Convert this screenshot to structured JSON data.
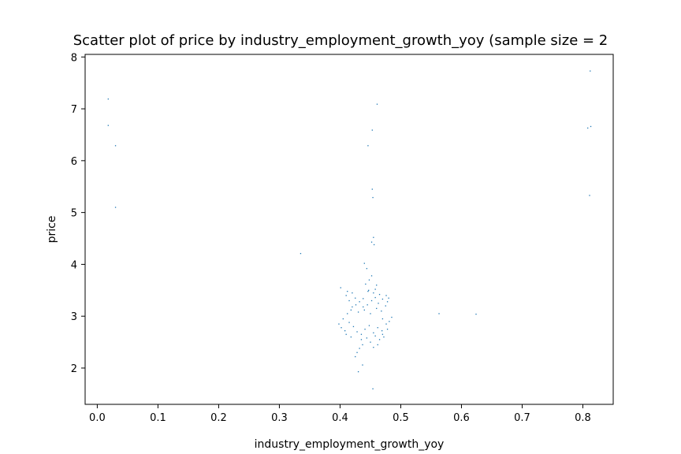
{
  "chart_data": {
    "type": "scatter",
    "title": "Scatter plot of price by industry_employment_growth_yoy (sample size = 2",
    "xlabel": "industry_employment_growth_yoy",
    "ylabel": "price",
    "xlim": [
      -0.02,
      0.85
    ],
    "ylim": [
      1.3,
      8.05
    ],
    "xticks": [
      0.0,
      0.1,
      0.2,
      0.3,
      0.4,
      0.5,
      0.6,
      0.7,
      0.8
    ],
    "xtick_labels": [
      "0.0",
      "0.1",
      "0.2",
      "0.3",
      "0.4",
      "0.5",
      "0.6",
      "0.7",
      "0.8"
    ],
    "yticks": [
      2,
      3,
      4,
      5,
      6,
      7,
      8
    ],
    "ytick_labels": [
      "2",
      "3",
      "4",
      "5",
      "6",
      "7",
      "8"
    ],
    "grid": false,
    "marker_color": "#1f77b4",
    "series": [
      {
        "points": [
          [
            0.018,
            7.19
          ],
          [
            0.018,
            6.68
          ],
          [
            0.03,
            6.29
          ],
          [
            0.03,
            5.1
          ],
          [
            0.335,
            4.21
          ],
          [
            0.461,
            7.09
          ],
          [
            0.453,
            6.59
          ],
          [
            0.446,
            6.29
          ],
          [
            0.453,
            5.45
          ],
          [
            0.454,
            5.29
          ],
          [
            0.455,
            4.52
          ],
          [
            0.452,
            4.43
          ],
          [
            0.456,
            4.38
          ],
          [
            0.563,
            3.05
          ],
          [
            0.624,
            3.04
          ],
          [
            0.812,
            7.73
          ],
          [
            0.808,
            6.63
          ],
          [
            0.813,
            6.66
          ],
          [
            0.811,
            5.33
          ],
          [
            0.454,
            1.6
          ],
          [
            0.43,
            1.93
          ],
          [
            0.437,
            2.06
          ],
          [
            0.401,
            3.55
          ],
          [
            0.44,
            4.02
          ],
          [
            0.444,
            3.92
          ],
          [
            0.448,
            3.7
          ],
          [
            0.442,
            3.62
          ],
          [
            0.446,
            3.48
          ],
          [
            0.41,
            3.4
          ],
          [
            0.415,
            3.3
          ],
          [
            0.425,
            3.35
          ],
          [
            0.432,
            3.28
          ],
          [
            0.438,
            3.34
          ],
          [
            0.445,
            3.22
          ],
          [
            0.452,
            3.3
          ],
          [
            0.458,
            3.36
          ],
          [
            0.463,
            3.25
          ],
          [
            0.47,
            3.33
          ],
          [
            0.475,
            3.2
          ],
          [
            0.478,
            3.28
          ],
          [
            0.468,
            3.1
          ],
          [
            0.46,
            3.15
          ],
          [
            0.45,
            3.05
          ],
          [
            0.44,
            3.12
          ],
          [
            0.43,
            3.08
          ],
          [
            0.42,
            3.18
          ],
          [
            0.412,
            3.05
          ],
          [
            0.405,
            2.95
          ],
          [
            0.398,
            2.85
          ],
          [
            0.402,
            2.78
          ],
          [
            0.408,
            2.72
          ],
          [
            0.415,
            2.88
          ],
          [
            0.422,
            2.8
          ],
          [
            0.428,
            2.7
          ],
          [
            0.435,
            2.65
          ],
          [
            0.441,
            2.75
          ],
          [
            0.448,
            2.82
          ],
          [
            0.455,
            2.68
          ],
          [
            0.462,
            2.78
          ],
          [
            0.469,
            2.72
          ],
          [
            0.476,
            2.85
          ],
          [
            0.481,
            2.9
          ],
          [
            0.472,
            2.6
          ],
          [
            0.465,
            2.55
          ],
          [
            0.458,
            2.62
          ],
          [
            0.45,
            2.5
          ],
          [
            0.444,
            2.58
          ],
          [
            0.437,
            2.45
          ],
          [
            0.432,
            2.38
          ],
          [
            0.428,
            2.3
          ],
          [
            0.425,
            2.22
          ],
          [
            0.435,
            2.55
          ],
          [
            0.418,
            2.6
          ],
          [
            0.41,
            2.65
          ],
          [
            0.455,
            2.4
          ],
          [
            0.462,
            2.45
          ],
          [
            0.47,
            2.95
          ],
          [
            0.485,
            2.98
          ],
          [
            0.48,
            3.35
          ],
          [
            0.476,
            3.4
          ],
          [
            0.465,
            3.42
          ],
          [
            0.455,
            3.45
          ],
          [
            0.447,
            3.5
          ],
          [
            0.438,
            3.18
          ],
          [
            0.426,
            3.22
          ],
          [
            0.418,
            3.12
          ],
          [
            0.412,
            3.48
          ],
          [
            0.42,
            3.45
          ],
          [
            0.46,
            3.6
          ],
          [
            0.452,
            3.78
          ],
          [
            0.458,
            3.52
          ],
          [
            0.47,
            2.65
          ],
          [
            0.478,
            2.75
          ]
        ]
      }
    ]
  }
}
